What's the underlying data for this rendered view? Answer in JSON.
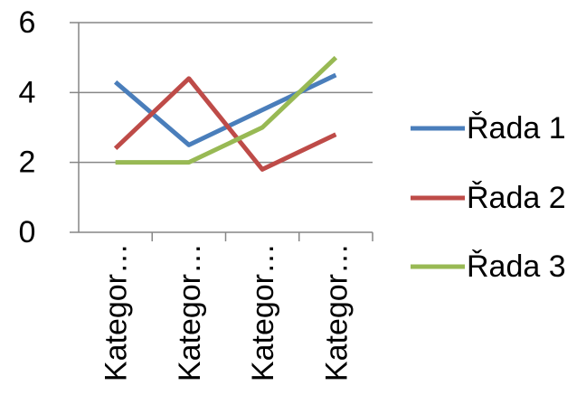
{
  "chart_data": {
    "type": "line",
    "categories": [
      "Kategor…",
      "Kategor…",
      "Kategor…",
      "Kategor…"
    ],
    "series": [
      {
        "name": "Řada 1",
        "values": [
          4.3,
          2.5,
          3.5,
          4.5
        ],
        "color": "#4a7ebb"
      },
      {
        "name": "Řada 2",
        "values": [
          2.4,
          4.4,
          1.8,
          2.8
        ],
        "color": "#be4b48"
      },
      {
        "name": "Řada 3",
        "values": [
          2.0,
          2.0,
          3.0,
          5.0
        ],
        "color": "#98b954"
      }
    ],
    "yticks": [
      "0",
      "2",
      "4",
      "6"
    ],
    "ylim": [
      0,
      6
    ],
    "grid": true,
    "legend": "right",
    "gridColor": "#868686",
    "axisColor": "#868686"
  }
}
